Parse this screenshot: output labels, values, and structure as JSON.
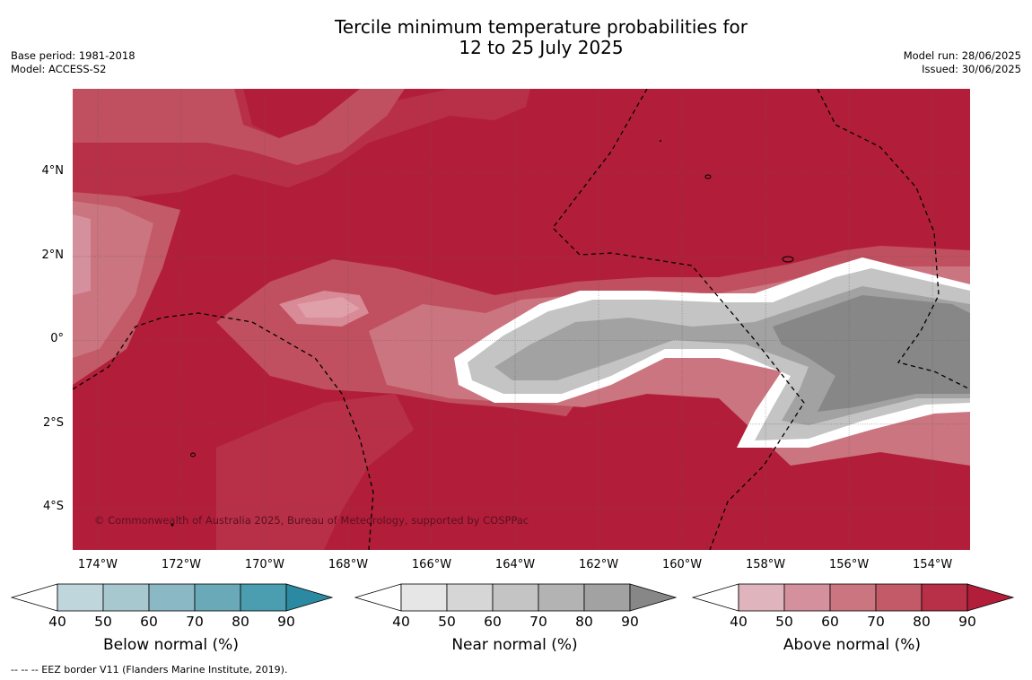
{
  "title": {
    "line1": "Tercile minimum temperature probabilities for",
    "line2": "12 to 25 July 2025"
  },
  "meta_left": {
    "base_period": "Base period: 1981-2018",
    "model": "Model: ACCESS-S2"
  },
  "meta_right": {
    "model_run": "Model run: 28/06/2025",
    "issued": "Issued: 30/06/2025"
  },
  "map": {
    "copyright": "© Commonwealth of Australia 2025, Bureau of Meteorology, supported by COSPPac",
    "lat_labels": [
      "4°N",
      "2°N",
      "0°",
      "2°S",
      "4°S"
    ],
    "lon_labels": [
      "174°W",
      "172°W",
      "170°W",
      "168°W",
      "166°W",
      "164°W",
      "162°W",
      "160°W",
      "158°W",
      "156°W",
      "154°W"
    ],
    "lat_values": [
      4,
      2,
      0,
      -2,
      -4
    ],
    "lon_values": [
      -174,
      -172,
      -170,
      -168,
      -166,
      -164,
      -162,
      -160,
      -158,
      -156,
      -154
    ],
    "extent": {
      "lon_min": -174.6,
      "lon_max": -153.1,
      "lat_min": -5.0,
      "lat_max": 6.0
    },
    "background_color": "#b21e3a"
  },
  "colorbars": [
    {
      "label": "Below normal (%)",
      "ticks": [
        "40",
        "50",
        "60",
        "70",
        "80",
        "90"
      ],
      "colors": [
        "#ffffff",
        "#bfd6dc",
        "#a8c8cf",
        "#8ab8c4",
        "#6aaab8",
        "#4a9eaf",
        "#2b8aa1"
      ]
    },
    {
      "label": "Near normal (%)",
      "ticks": [
        "40",
        "50",
        "60",
        "70",
        "80",
        "90"
      ],
      "colors": [
        "#ffffff",
        "#e6e6e6",
        "#d6d6d6",
        "#c4c4c4",
        "#b3b3b3",
        "#a2a2a2",
        "#878787"
      ]
    },
    {
      "label": "Above normal (%)",
      "ticks": [
        "40",
        "50",
        "60",
        "70",
        "80",
        "90"
      ],
      "colors": [
        "#ffffff",
        "#e0b4bc",
        "#d4909c",
        "#cb7580",
        "#c35a68",
        "#b83048",
        "#b21e3a"
      ]
    }
  ],
  "footer": "--  --  -- EEZ border V11 (Flanders Marine Institute, 2019)."
}
